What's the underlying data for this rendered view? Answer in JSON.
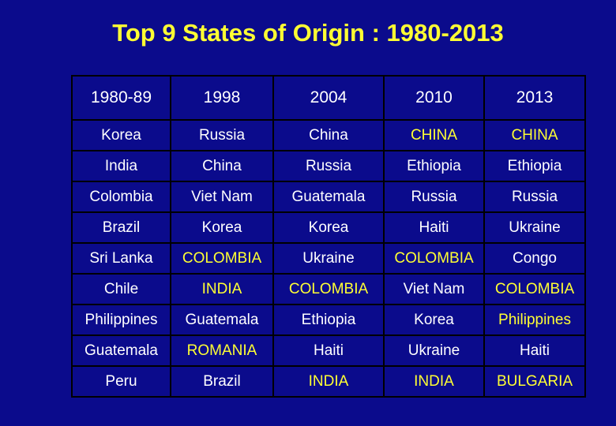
{
  "title": "Top 9 States of Origin : 1980-2013",
  "table": {
    "header": [
      "1980-89",
      "1998",
      "2004",
      "2010",
      "2013"
    ],
    "rows": [
      [
        "Korea",
        "Russia",
        "China",
        {
          "text": "CHINA",
          "highlight": true
        },
        {
          "text": "CHINA",
          "highlight": true
        }
      ],
      [
        "India",
        "China",
        "Russia",
        "Ethiopia",
        "Ethiopia"
      ],
      [
        "Colombia",
        "Viet Nam",
        "Guatemala",
        "Russia",
        "Russia"
      ],
      [
        "Brazil",
        "Korea",
        "Korea",
        "Haiti",
        "Ukraine"
      ],
      [
        "Sri Lanka",
        {
          "text": "COLOMBIA",
          "highlight": true
        },
        "Ukraine",
        {
          "text": "COLOMBIA",
          "highlight": true
        },
        "Congo"
      ],
      [
        "Chile",
        {
          "text": "INDIA",
          "highlight": true
        },
        {
          "text": "COLOMBIA",
          "highlight": true
        },
        "Viet Nam",
        {
          "text": "COLOMBIA",
          "highlight": true
        }
      ],
      [
        "Philippines",
        "Guatemala",
        "Ethiopia",
        "Korea",
        {
          "text": "Philippines",
          "highlight": true
        }
      ],
      [
        "Guatemala",
        {
          "text": "ROMANIA",
          "highlight": true
        },
        "Haiti",
        "Ukraine",
        "Haiti"
      ],
      [
        "Peru",
        "Brazil",
        {
          "text": "INDIA",
          "highlight": true
        },
        {
          "text": "INDIA",
          "highlight": true
        },
        {
          "text": "BULGARIA",
          "highlight": true
        }
      ]
    ]
  }
}
